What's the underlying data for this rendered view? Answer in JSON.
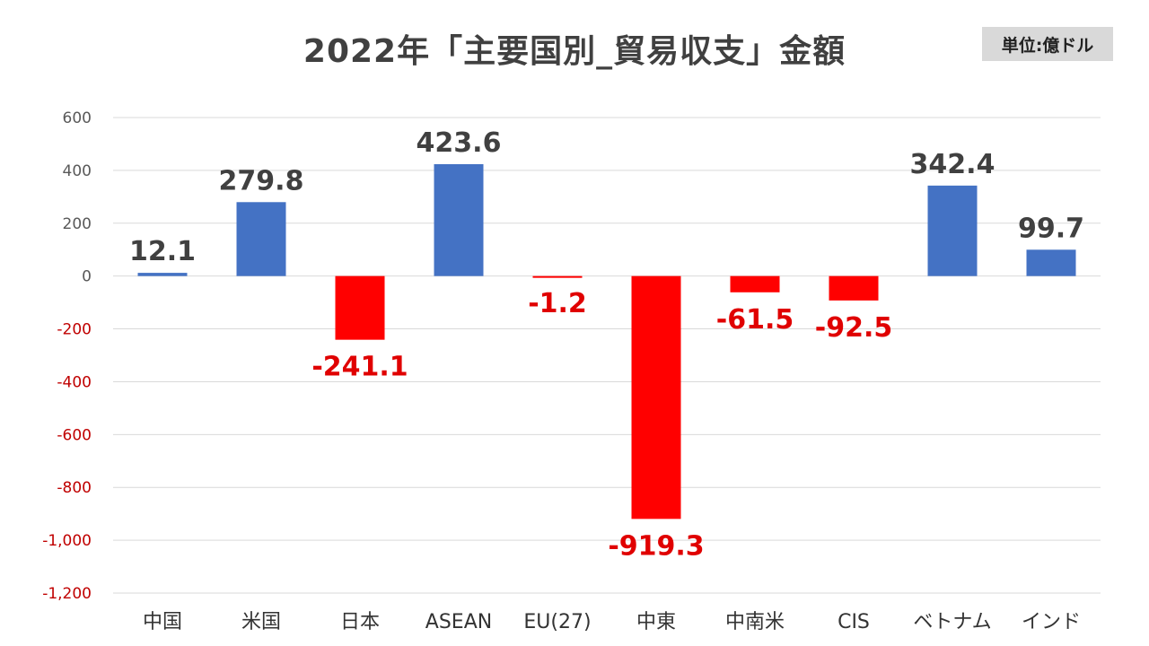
{
  "chart_data": {
    "type": "bar",
    "title": "2022年「主要国別_貿易収支」金額",
    "unit_label": "単位:億ドル",
    "categories": [
      "中国",
      "米国",
      "日本",
      "ASEAN",
      "EU(27)",
      "中東",
      "中南米",
      "CIS",
      "ベトナム",
      "インド"
    ],
    "values": [
      12.1,
      279.8,
      -241.1,
      423.6,
      -1.2,
      -919.3,
      -61.5,
      -92.5,
      342.4,
      99.7
    ],
    "value_labels": [
      "12.1",
      "279.8",
      "-241.1",
      "423.6",
      "-1.2",
      "-919.3",
      "-61.5",
      "-92.5",
      "342.4",
      "99.7"
    ],
    "ylim": [
      -1200,
      600
    ],
    "yticks": [
      600,
      400,
      200,
      0,
      -200,
      -400,
      -600,
      -800,
      -1000,
      -1200
    ],
    "ytick_labels": [
      "600",
      "400",
      "200",
      "0",
      "-200",
      "-400",
      "-600",
      "-800",
      "-1,000",
      "-1,200"
    ],
    "grid": true,
    "legend": "none",
    "colors": {
      "positive": "#4472c4",
      "negative": "#ff0000",
      "positive_label": "#404040",
      "negative_label": "#e00000",
      "positive_tick": "#595959",
      "negative_tick": "#c00000",
      "grid": "#d9d9d9"
    }
  }
}
